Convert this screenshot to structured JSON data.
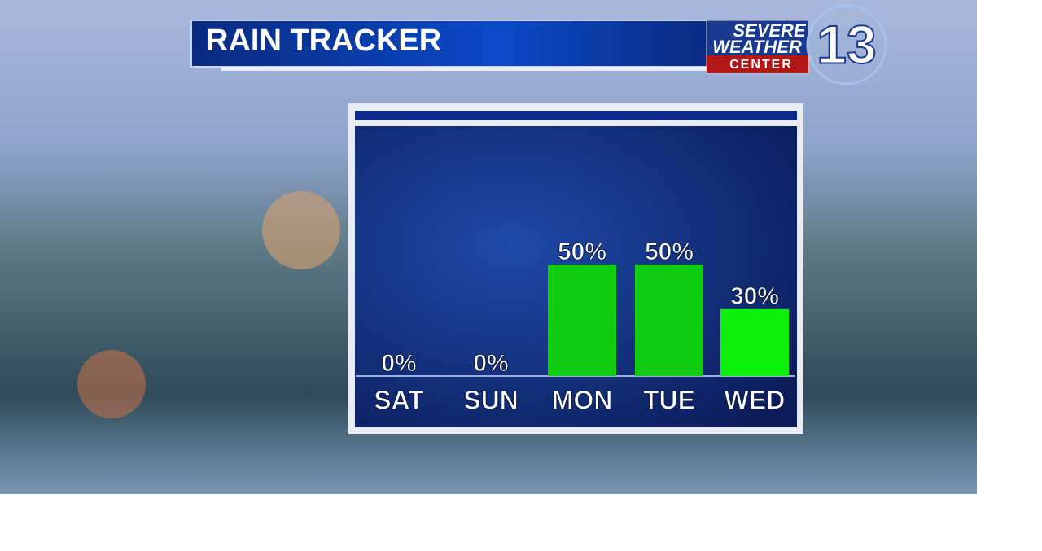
{
  "chart_data": {
    "type": "bar",
    "title": "RAIN TRACKER",
    "categories": [
      "SAT",
      "SUN",
      "MON",
      "TUE",
      "WED"
    ],
    "values": [
      0,
      0,
      50,
      50,
      30
    ],
    "value_labels": [
      "0%",
      "0%",
      "50%",
      "50%",
      "30%"
    ],
    "colors": [
      "#12cc12",
      "#12cc12",
      "#12cc12",
      "#12cc12",
      "#0af00a"
    ]
  },
  "logo": {
    "line1": "SEVERE",
    "line2": "WEATHER",
    "line3": "CENTER",
    "number": "13"
  }
}
